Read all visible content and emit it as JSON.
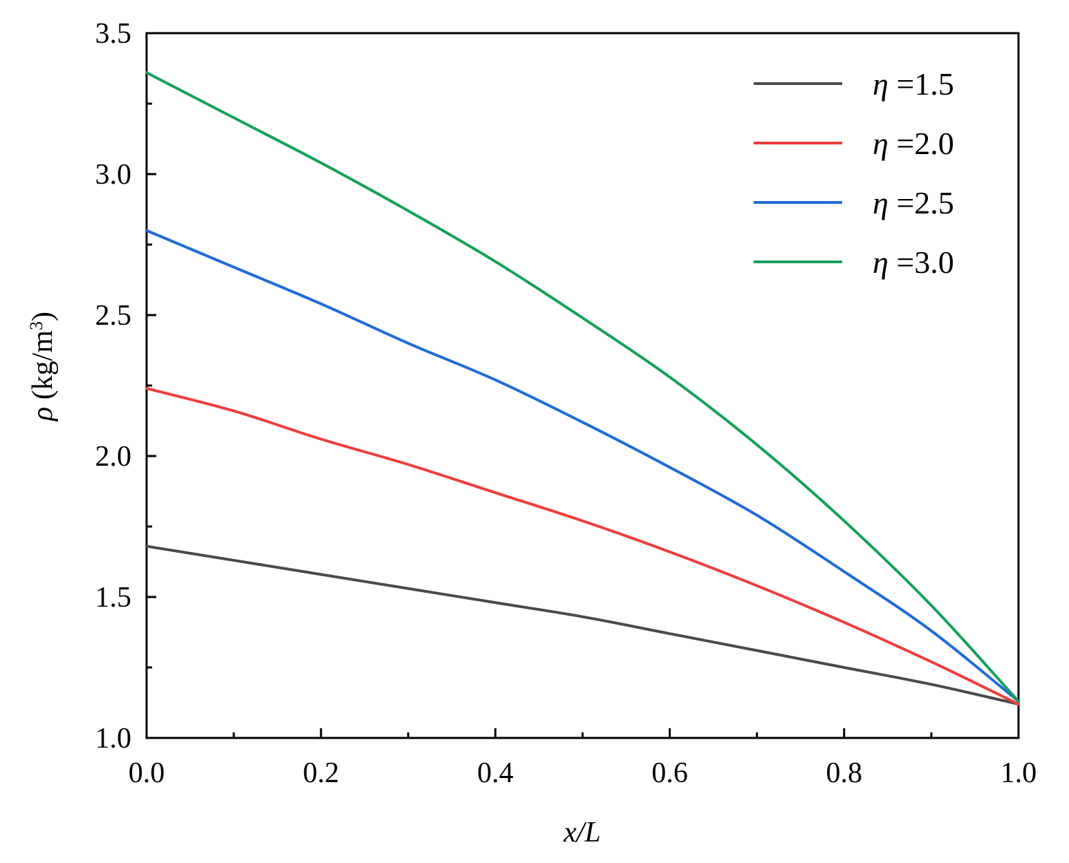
{
  "chart_data": {
    "type": "line",
    "xlabel": "x/L",
    "ylabel": "ρ (kg/m3)",
    "xlim": [
      0,
      1
    ],
    "ylim": [
      1.0,
      3.5
    ],
    "x_ticks": [
      "0.0",
      "0.2",
      "0.4",
      "0.6",
      "0.8",
      "1.0"
    ],
    "y_ticks": [
      "1.0",
      "1.5",
      "2.0",
      "2.5",
      "3.0",
      "3.5"
    ],
    "grid": false,
    "legend_position": "top-right",
    "x": [
      0.0,
      0.1,
      0.2,
      0.3,
      0.4,
      0.5,
      0.6,
      0.7,
      0.8,
      0.9,
      1.0
    ],
    "series": [
      {
        "name": "η =1.5",
        "color": "#4a4a4a",
        "values": [
          1.68,
          1.63,
          1.58,
          1.53,
          1.48,
          1.43,
          1.37,
          1.31,
          1.25,
          1.19,
          1.12
        ]
      },
      {
        "name": "η =2.0",
        "color": "#f03c3c",
        "values": [
          2.24,
          2.16,
          2.06,
          1.97,
          1.87,
          1.77,
          1.66,
          1.54,
          1.41,
          1.27,
          1.12
        ]
      },
      {
        "name": "η =2.5",
        "color": "#1f6ad8",
        "values": [
          2.8,
          2.67,
          2.54,
          2.4,
          2.27,
          2.12,
          1.96,
          1.79,
          1.59,
          1.38,
          1.13
        ]
      },
      {
        "name": "η =3.0",
        "color": "#16a05a",
        "values": [
          3.36,
          3.2,
          3.04,
          2.87,
          2.69,
          2.49,
          2.28,
          2.04,
          1.77,
          1.47,
          1.13
        ]
      }
    ]
  }
}
